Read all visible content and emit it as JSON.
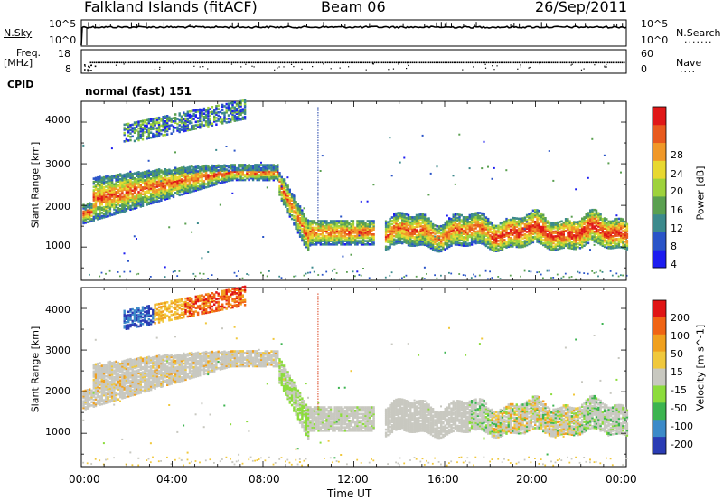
{
  "header": {
    "station": "Falkland Islands (fitACF)",
    "beam": "Beam 06",
    "date": "26/Sep/2011"
  },
  "sky_panel": {
    "left_label": "N.Sky",
    "right_label": "N.Search",
    "left_ticks": [
      "10^5",
      "10^0"
    ],
    "right_ticks": [
      "10^5",
      "10^0"
    ]
  },
  "freq_panel": {
    "left_label_1": "Freq.",
    "left_label_2": "[MHz]",
    "right_label": "Nave",
    "left_ticks": [
      "18",
      "8"
    ],
    "right_ticks": [
      "60",
      "0"
    ]
  },
  "cpid": {
    "label": "CPID",
    "value": "normal (fast) 151"
  },
  "chart_data": [
    {
      "type": "heatmap",
      "name": "Power",
      "ylabel": "Slant Range [km]",
      "colorbar_label": "Power [dB]",
      "colorbar_ticks": [
        4,
        8,
        12,
        16,
        20,
        24,
        28
      ],
      "colorbar_range": [
        0,
        32
      ],
      "ylim": [
        200,
        4500
      ],
      "y_ticks": [
        1000,
        2000,
        3000,
        4000
      ],
      "x_ticks": [
        "00:00",
        "04:00",
        "08:00",
        "12:00",
        "16:00",
        "20:00",
        "00:00"
      ],
      "xlim_hours": [
        0,
        24
      ],
      "colors": [
        "#1c1cf0",
        "#2a54c8",
        "#3c8a8c",
        "#5aa050",
        "#9ed23c",
        "#e8d830",
        "#f09828",
        "#e85a1e",
        "#e01818"
      ]
    },
    {
      "type": "heatmap",
      "name": "Velocity",
      "ylabel": "Slant Range [km]",
      "colorbar_label": "Velocity [m s^-1]",
      "colorbar_ticks": [
        "200",
        "100",
        "50",
        "15",
        "-15",
        "-50",
        "-100",
        "-200"
      ],
      "ylim": [
        200,
        4500
      ],
      "y_ticks": [
        1000,
        2000,
        3000,
        4000
      ],
      "x_ticks": [
        "00:00",
        "04:00",
        "08:00",
        "12:00",
        "16:00",
        "20:00",
        "00:00"
      ],
      "xlabel": "Time UT",
      "colors": [
        "#2a3cb4",
        "#3c8ac8",
        "#3cb450",
        "#8cdc3c",
        "#c8c8c0",
        "#f0c83c",
        "#f0a01e",
        "#f06414",
        "#e01414"
      ]
    }
  ]
}
